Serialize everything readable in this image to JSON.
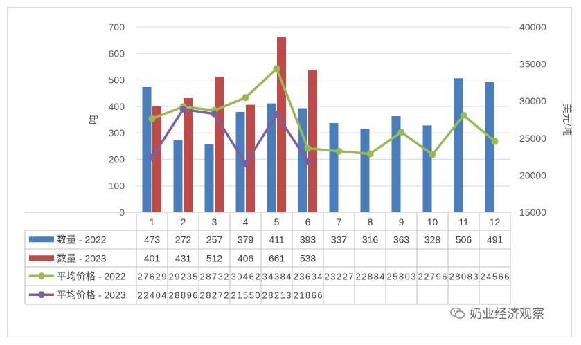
{
  "chart_data": {
    "type": "bar",
    "categories": [
      "1",
      "2",
      "3",
      "4",
      "5",
      "6",
      "7",
      "8",
      "9",
      "10",
      "11",
      "12"
    ],
    "ylabel": "吨",
    "y2label": "美元/吨",
    "ylim": [
      0,
      700
    ],
    "y2lim": [
      15000,
      40000
    ],
    "yticks": [
      "0",
      "100",
      "200",
      "300",
      "400",
      "500",
      "600",
      "700"
    ],
    "y2ticks": [
      "15000",
      "20000",
      "25000",
      "30000",
      "35000",
      "40000"
    ],
    "grid": true,
    "legend": "data-table",
    "series": [
      {
        "name": "数量 - 2022",
        "type": "bar",
        "axis": "left",
        "color": "#4a7ebb",
        "values": [
          473,
          272,
          257,
          379,
          411,
          393,
          337,
          316,
          363,
          328,
          506,
          491
        ]
      },
      {
        "name": "数量 - 2023",
        "type": "bar",
        "axis": "left",
        "color": "#be4b48",
        "values": [
          401,
          431,
          512,
          406,
          661,
          538,
          null,
          null,
          null,
          null,
          null,
          null
        ]
      },
      {
        "name": "平均价格 - 2022",
        "type": "line",
        "axis": "right",
        "color": "#98b954",
        "values": [
          27629,
          29235,
          28732,
          30462,
          34384,
          23634,
          23227,
          22884,
          25803,
          22796,
          28083,
          24566
        ]
      },
      {
        "name": "平均价格 - 2023",
        "type": "line",
        "axis": "right",
        "color": "#7d60a0",
        "values": [
          22404,
          28896,
          28272,
          21550,
          28213,
          21866,
          null,
          null,
          null,
          null,
          null,
          null
        ]
      }
    ]
  },
  "watermark": {
    "text": "奶业经济观察",
    "icon": "wechat-icon"
  }
}
